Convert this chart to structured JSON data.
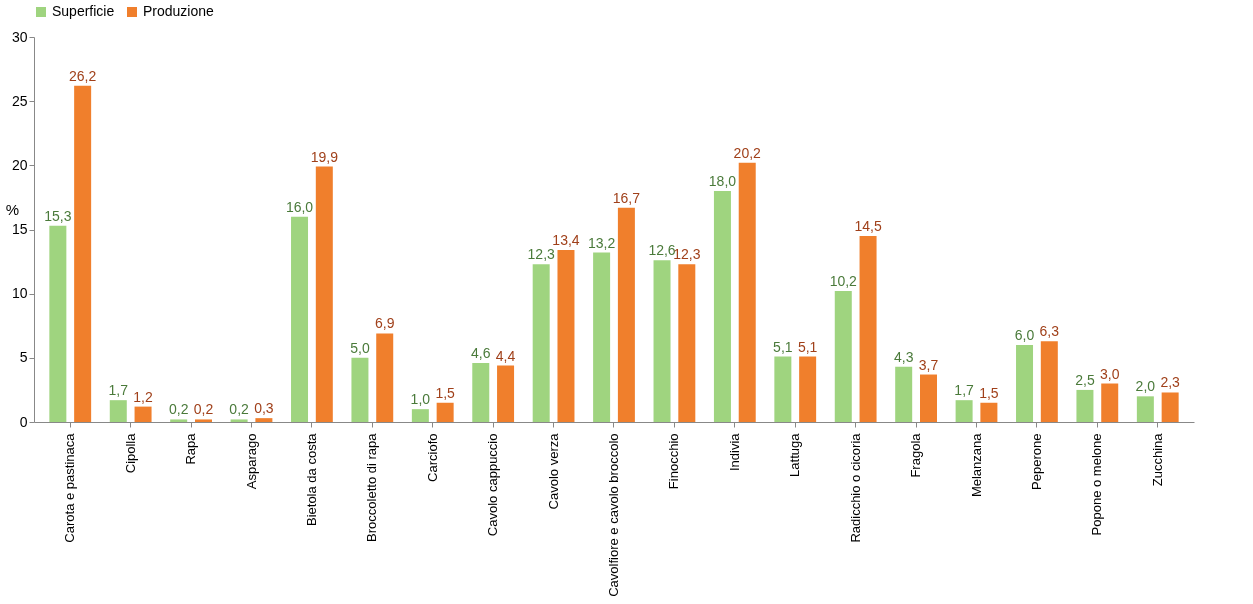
{
  "chart_data": {
    "type": "bar",
    "ylabel": "%",
    "categories": [
      "Carota e pastinaca",
      "Cipolla",
      "Rapa",
      "Asparago",
      "Bietola da costa",
      "Broccoletto di rapa",
      "Carciofo",
      "Cavolo cappuccio",
      "Cavolo verza",
      "Cavolfiore e cavolo broccolo",
      "Finocchio",
      "Indivia",
      "Lattuga",
      "Radicchio o cicoria",
      "Fragola",
      "Melanzana",
      "Peperone",
      "Popone o melone",
      "Zucchina"
    ],
    "series": [
      {
        "name": "Superficie",
        "color": "#9fd47f",
        "values": [
          15.3,
          1.7,
          0.2,
          0.2,
          16.0,
          5.0,
          1.0,
          4.6,
          12.3,
          13.2,
          12.6,
          18.0,
          5.1,
          10.2,
          4.3,
          1.7,
          6.0,
          2.5,
          2.0
        ],
        "value_labels": [
          "15,3",
          "1,7",
          "0,2",
          "0,2",
          "16,0",
          "5,0",
          "1,0",
          "4,6",
          "12,3",
          "13,2",
          "12,6",
          "18,0",
          "5,1",
          "10,2",
          "4,3",
          "1,7",
          "6,0",
          "2,5",
          "2,0"
        ]
      },
      {
        "name": "Produzione",
        "color": "#f07f2c",
        "values": [
          26.2,
          1.2,
          0.2,
          0.3,
          19.9,
          6.9,
          1.5,
          4.4,
          13.4,
          16.7,
          12.3,
          20.2,
          5.1,
          14.5,
          3.7,
          1.5,
          6.3,
          3.0,
          2.3
        ],
        "value_labels": [
          "26,2",
          "1,2",
          "0,2",
          "0,3",
          "19,9",
          "6,9",
          "1,5",
          "4,4",
          "13,4",
          "16,7",
          "12,3",
          "20,2",
          "5,1",
          "14,5",
          "3,7",
          "1,5",
          "6,3",
          "3,0",
          "2,3"
        ]
      }
    ],
    "ylim": [
      0,
      30
    ],
    "yticks": [
      0,
      5,
      10,
      15,
      20,
      25,
      30
    ],
    "grid": false,
    "legend": "top"
  }
}
